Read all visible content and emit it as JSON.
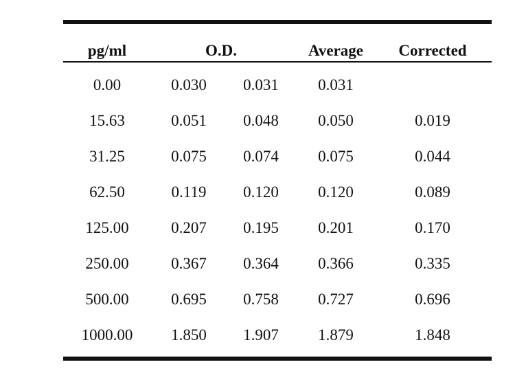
{
  "table": {
    "headers": {
      "concentration": "pg/ml",
      "od": "O.D.",
      "average": "Average",
      "corrected": "Corrected"
    },
    "rows": [
      {
        "concentration": "0.00",
        "od1": "0.030",
        "od2": "0.031",
        "average": "0.031",
        "corrected": ""
      },
      {
        "concentration": "15.63",
        "od1": "0.051",
        "od2": "0.048",
        "average": "0.050",
        "corrected": "0.019"
      },
      {
        "concentration": "31.25",
        "od1": "0.075",
        "od2": "0.074",
        "average": "0.075",
        "corrected": "0.044"
      },
      {
        "concentration": "62.50",
        "od1": "0.119",
        "od2": "0.120",
        "average": "0.120",
        "corrected": "0.089"
      },
      {
        "concentration": "125.00",
        "od1": "0.207",
        "od2": "0.195",
        "average": "0.201",
        "corrected": "0.170"
      },
      {
        "concentration": "250.00",
        "od1": "0.367",
        "od2": "0.364",
        "average": "0.366",
        "corrected": "0.335"
      },
      {
        "concentration": "500.00",
        "od1": "0.695",
        "od2": "0.758",
        "average": "0.727",
        "corrected": "0.696"
      },
      {
        "concentration": "1000.00",
        "od1": "1.850",
        "od2": "1.907",
        "average": "1.879",
        "corrected": "1.848"
      }
    ]
  }
}
